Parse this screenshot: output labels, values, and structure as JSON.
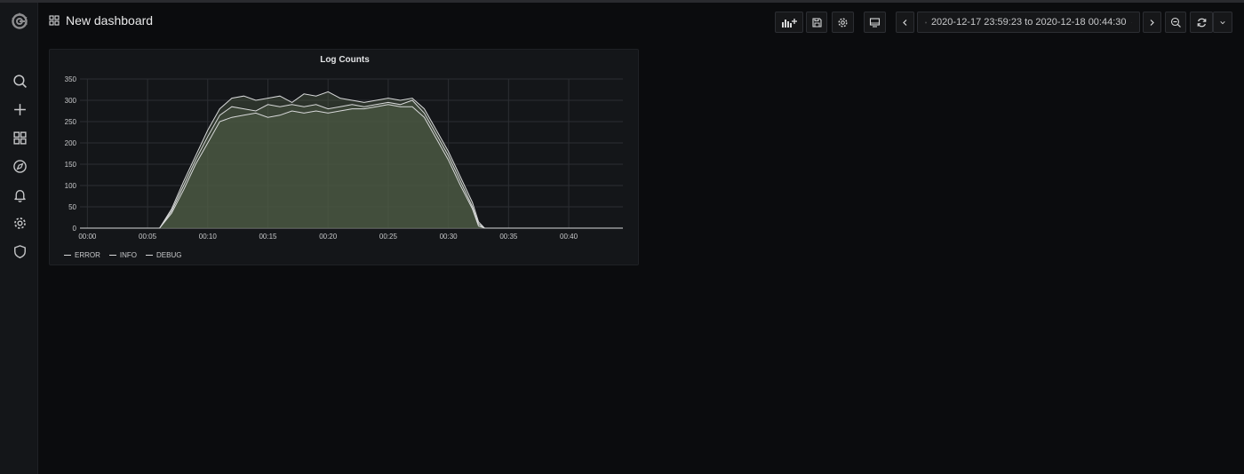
{
  "header": {
    "title": "New dashboard",
    "time_range": "2020-12-17 23:59:23 to 2020-12-18 00:44:30"
  },
  "sidebar": {
    "items": [
      {
        "name": "search",
        "icon": "search-icon"
      },
      {
        "name": "create",
        "icon": "plus-icon"
      },
      {
        "name": "dashboards",
        "icon": "grid-icon"
      },
      {
        "name": "explore",
        "icon": "compass-icon"
      },
      {
        "name": "alerting",
        "icon": "bell-icon"
      },
      {
        "name": "configuration",
        "icon": "gear-icon"
      },
      {
        "name": "server-admin",
        "icon": "shield-icon"
      }
    ]
  },
  "toolbar": {
    "buttons": [
      "add-panel-icon",
      "save-icon",
      "settings-gear-icon",
      "tv-mode-icon",
      "chevron-left-icon",
      "clock-icon",
      "chevron-right-icon",
      "zoom-out-icon",
      "refresh-icon",
      "chevron-down-icon"
    ]
  },
  "colors": {
    "background": "#0b0c0e",
    "panel": "#141619",
    "series_line": "#d8d9da",
    "area_fill": "#4f5c45"
  },
  "chart_data": {
    "type": "area",
    "title": "Log Counts",
    "xlabel": "",
    "ylabel": "",
    "x_ticks": [
      "00:00",
      "00:05",
      "00:10",
      "00:15",
      "00:20",
      "00:25",
      "00:30",
      "00:35",
      "00:40"
    ],
    "y_ticks": [
      0,
      50,
      100,
      150,
      200,
      250,
      300,
      350
    ],
    "xlim": [
      "23:59:23",
      "00:44:30"
    ],
    "ylim": [
      0,
      350
    ],
    "grid": true,
    "legend": "bottom-left",
    "x": [
      "23:59:23",
      "00:06:00",
      "00:07:00",
      "00:08:00",
      "00:09:00",
      "00:10:00",
      "00:11:00",
      "00:12:00",
      "00:13:00",
      "00:14:00",
      "00:15:00",
      "00:16:00",
      "00:17:00",
      "00:18:00",
      "00:19:00",
      "00:20:00",
      "00:21:00",
      "00:22:00",
      "00:23:00",
      "00:24:00",
      "00:25:00",
      "00:26:00",
      "00:27:00",
      "00:28:00",
      "00:29:00",
      "00:30:00",
      "00:31:00",
      "00:32:00",
      "00:32:30",
      "00:33:00",
      "00:44:30"
    ],
    "series": [
      {
        "name": "ERROR",
        "values": [
          0,
          0,
          45,
          110,
          170,
          230,
          280,
          305,
          310,
          300,
          305,
          310,
          295,
          315,
          310,
          320,
          305,
          300,
          295,
          300,
          305,
          300,
          305,
          280,
          230,
          180,
          120,
          60,
          15,
          0,
          0
        ]
      },
      {
        "name": "INFO",
        "values": [
          0,
          0,
          40,
          100,
          160,
          215,
          265,
          285,
          280,
          275,
          290,
          285,
          290,
          285,
          290,
          280,
          285,
          290,
          285,
          290,
          295,
          290,
          300,
          270,
          220,
          170,
          110,
          50,
          10,
          0,
          0
        ]
      },
      {
        "name": "DEBUG",
        "values": [
          0,
          0,
          35,
          90,
          150,
          200,
          250,
          260,
          265,
          270,
          260,
          265,
          275,
          270,
          275,
          270,
          275,
          280,
          280,
          285,
          290,
          285,
          285,
          260,
          210,
          160,
          100,
          45,
          5,
          0,
          0
        ]
      }
    ]
  }
}
